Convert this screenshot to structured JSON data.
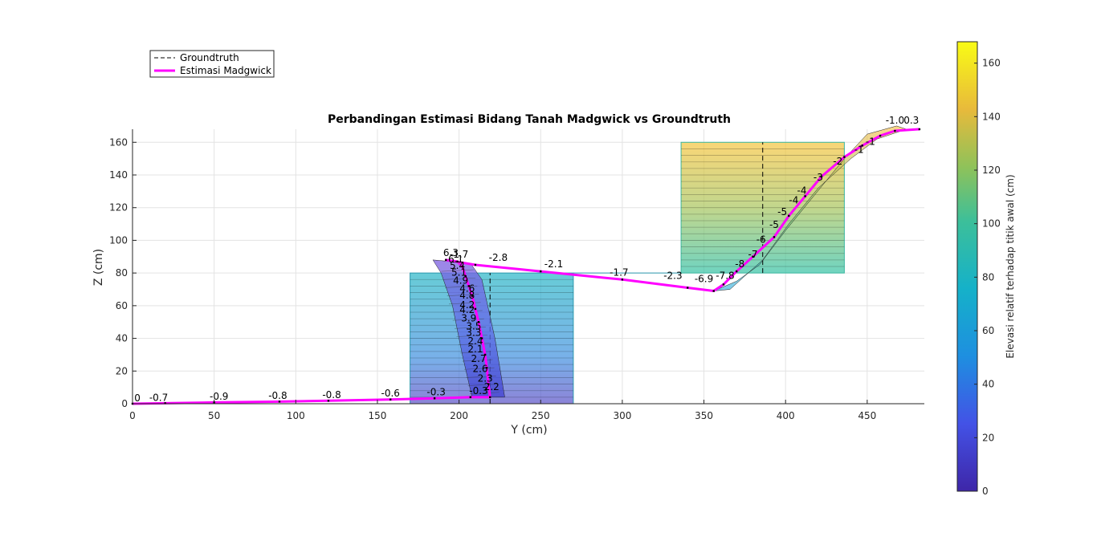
{
  "chart_data": {
    "type": "line",
    "title": "Perbandingan Estimasi Bidang Tanah Madgwick vs Groundtruth",
    "xlabel": "Y (cm)",
    "ylabel": "Z (cm)",
    "xlim": [
      0,
      485
    ],
    "ylim": [
      0,
      168
    ],
    "xticks": [
      0,
      50,
      100,
      150,
      200,
      250,
      300,
      350,
      400,
      450
    ],
    "yticks": [
      0,
      20,
      40,
      60,
      80,
      100,
      120,
      140,
      160
    ],
    "grid": true,
    "legend": {
      "placement": "top-left, outside axes",
      "entries": [
        "Groundtruth",
        "Estimasi Madgwick"
      ]
    },
    "colorbar": {
      "label": "Elevasi relatif terhadap titik awal (cm)",
      "range": [
        0,
        168
      ],
      "ticks": [
        0,
        20,
        40,
        60,
        80,
        100,
        120,
        140,
        160
      ]
    },
    "colors": {
      "estimate": "#ff00ff",
      "groundtruth": "#000000",
      "box_low": "#3f8fd0",
      "box_high": "#f6d35a"
    },
    "groundtruth": {
      "boxes": [
        {
          "y": [
            170,
            270
          ],
          "z": [
            0,
            80
          ]
        },
        {
          "y": [
            336,
            436
          ],
          "z": [
            80,
            160
          ]
        }
      ],
      "dashed_lines": [
        {
          "y": 219,
          "z": [
            0,
            80
          ]
        },
        {
          "y": 386,
          "z": [
            80,
            160
          ]
        }
      ]
    },
    "series": [
      {
        "name": "Estimasi Madgwick",
        "points": [
          [
            0,
            0
          ],
          [
            20,
            0.3
          ],
          [
            50,
            0.8
          ],
          [
            90,
            1.3
          ],
          [
            120,
            1.8
          ],
          [
            158,
            2.6
          ],
          [
            185,
            3.3
          ],
          [
            207,
            4
          ],
          [
            219,
            4
          ],
          [
            218,
            12
          ],
          [
            217,
            22
          ],
          [
            216,
            30
          ],
          [
            214,
            40
          ],
          [
            212,
            50
          ],
          [
            210,
            58
          ],
          [
            208,
            66
          ],
          [
            206,
            72
          ],
          [
            204,
            78
          ],
          [
            202,
            84
          ],
          [
            199,
            87
          ],
          [
            192,
            88
          ],
          [
            210,
            85
          ],
          [
            250,
            81
          ],
          [
            300,
            76
          ],
          [
            340,
            71
          ],
          [
            356,
            69
          ],
          [
            362,
            73
          ],
          [
            370,
            81
          ],
          [
            380,
            90
          ],
          [
            393,
            102
          ],
          [
            402,
            115
          ],
          [
            412,
            127
          ],
          [
            422,
            139
          ],
          [
            436,
            151
          ],
          [
            447,
            158
          ],
          [
            458,
            164
          ],
          [
            467,
            167
          ],
          [
            482,
            168
          ]
        ]
      }
    ],
    "segment_labels": [
      {
        "y": 3,
        "z": 0,
        "text": "0"
      },
      {
        "y": 16,
        "z": 0.3,
        "text": "-0.7"
      },
      {
        "y": 53,
        "z": 0.9,
        "text": "-0.9"
      },
      {
        "y": 89,
        "z": 1.5,
        "text": "-0.8"
      },
      {
        "y": 122,
        "z": 1.9,
        "text": "-0.8"
      },
      {
        "y": 158,
        "z": 3,
        "text": "-0.6"
      },
      {
        "y": 186,
        "z": 3.6,
        "text": "-0.3"
      },
      {
        "y": 212,
        "z": 4.5,
        "text": "-0.3"
      },
      {
        "y": 220,
        "z": 7,
        "text": "2.2"
      },
      {
        "y": 216,
        "z": 12,
        "text": "2.3"
      },
      {
        "y": 213,
        "z": 18,
        "text": "2.6"
      },
      {
        "y": 212,
        "z": 24,
        "text": "2.7"
      },
      {
        "y": 210,
        "z": 30,
        "text": "2.1"
      },
      {
        "y": 210,
        "z": 35,
        "text": "2.4"
      },
      {
        "y": 209,
        "z": 40,
        "text": "3.3"
      },
      {
        "y": 209,
        "z": 44,
        "text": "3.5"
      },
      {
        "y": 206,
        "z": 49,
        "text": "3.9"
      },
      {
        "y": 205,
        "z": 54,
        "text": "4.2"
      },
      {
        "y": 205,
        "z": 57,
        "text": "4.2"
      },
      {
        "y": 205,
        "z": 63,
        "text": "4.8"
      },
      {
        "y": 205,
        "z": 67,
        "text": "4.6"
      },
      {
        "y": 201,
        "z": 72,
        "text": "4.9"
      },
      {
        "y": 200,
        "z": 77,
        "text": "5.1"
      },
      {
        "y": 199,
        "z": 81,
        "text": "5.4"
      },
      {
        "y": 198,
        "z": 85,
        "text": "6.1"
      },
      {
        "y": 195,
        "z": 89,
        "text": "6.3"
      },
      {
        "y": 200,
        "z": 88,
        "text": "-1.7"
      },
      {
        "y": 224,
        "z": 86,
        "text": "-2.8"
      },
      {
        "y": 258,
        "z": 82,
        "text": "-2.1"
      },
      {
        "y": 298,
        "z": 77,
        "text": "-1.7"
      },
      {
        "y": 331,
        "z": 75,
        "text": "-2.3"
      },
      {
        "y": 350,
        "z": 73,
        "text": "-6.9"
      },
      {
        "y": 363,
        "z": 75,
        "text": "-7.8"
      },
      {
        "y": 372,
        "z": 82,
        "text": "-8"
      },
      {
        "y": 380,
        "z": 88,
        "text": "-7"
      },
      {
        "y": 385,
        "z": 97,
        "text": "-6"
      },
      {
        "y": 393,
        "z": 106,
        "text": "-5"
      },
      {
        "y": 398,
        "z": 114,
        "text": "-5"
      },
      {
        "y": 405,
        "z": 121,
        "text": "-4"
      },
      {
        "y": 410,
        "z": 127,
        "text": "-4"
      },
      {
        "y": 420,
        "z": 135,
        "text": "-3"
      },
      {
        "y": 432,
        "z": 145,
        "text": "-2"
      },
      {
        "y": 445,
        "z": 152,
        "text": "-1"
      },
      {
        "y": 452,
        "z": 157,
        "text": "-1"
      },
      {
        "y": 467,
        "z": 170,
        "text": "-1.0"
      },
      {
        "y": 477,
        "z": 170,
        "text": "0.3"
      }
    ]
  }
}
